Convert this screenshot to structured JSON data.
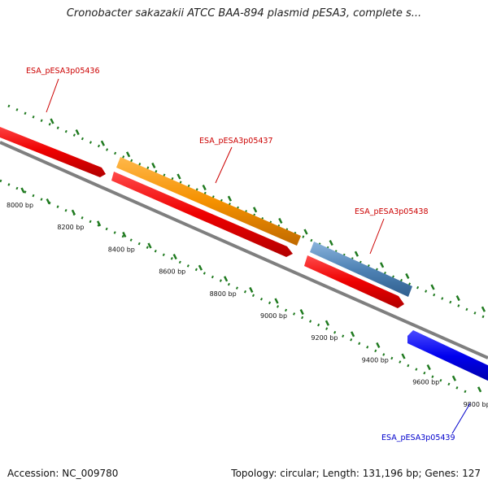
{
  "title": "Cronobacter sakazakii ATCC BAA-894 plasmid pESA3, complete s...",
  "footer": {
    "accession": "Accession: NC_009780",
    "summary": "Topology: circular; Length: 131,196 bp; Genes: 127"
  },
  "ruler": {
    "unit": "bp",
    "ticks": [
      {
        "pos": 8000,
        "label": "8000 bp"
      },
      {
        "pos": 8200,
        "label": "8200 bp"
      },
      {
        "pos": 8400,
        "label": "8400 bp"
      },
      {
        "pos": 8600,
        "label": "8600 bp"
      },
      {
        "pos": 8800,
        "label": "8800 bp"
      },
      {
        "pos": 9000,
        "label": "9000 bp"
      },
      {
        "pos": 9200,
        "label": "9200 bp"
      },
      {
        "pos": 9400,
        "label": "9400 bp"
      },
      {
        "pos": 9600,
        "label": "9600 bp"
      },
      {
        "pos": 9800,
        "label": "9800 bp"
      }
    ]
  },
  "genes": [
    {
      "name": "ESA_pESA3p05436",
      "label_color": "#cc0000"
    },
    {
      "name": "ESA_pESA3p05437",
      "label_color": "#cc0000"
    },
    {
      "name": "ESA_pESA3p05438",
      "label_color": "#cc0000"
    },
    {
      "name": "ESA_pESA3p05439",
      "label_color": "#0000cc"
    }
  ],
  "colors": {
    "cds": "#ee0000",
    "gene_orange": "#f59100",
    "gene_steel": "#4f83b5",
    "gene_blue": "#0000ee",
    "backbone": "#7f7f7f",
    "ruler": "#1f7a1f"
  }
}
